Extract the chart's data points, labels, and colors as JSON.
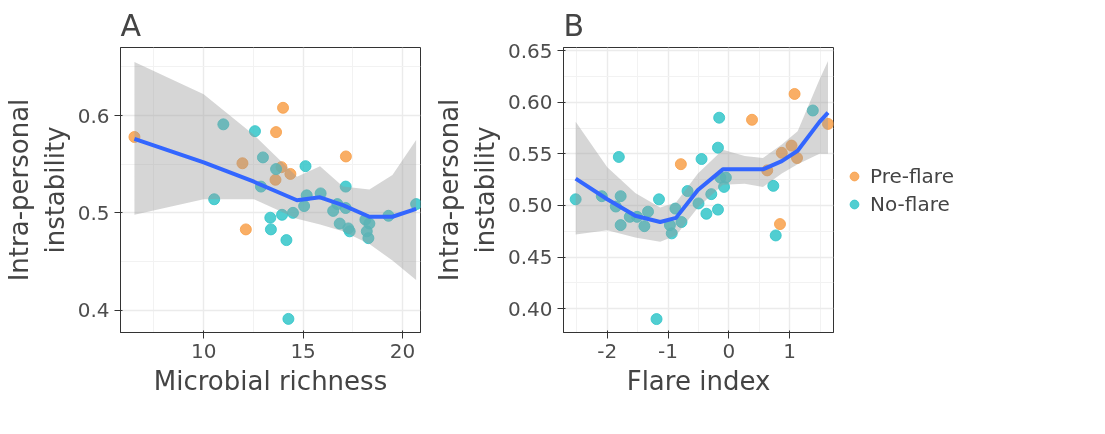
{
  "chart_data": [
    {
      "type": "scatter",
      "title": "A",
      "xlabel": "Microbial richness",
      "ylabel": "Intra-personal\ninstability",
      "xlim": [
        5.82,
        20.9
      ],
      "ylim": [
        0.377,
        0.67
      ],
      "xticks": [
        10,
        15,
        20
      ],
      "yticks": [
        0.4,
        0.5,
        0.6
      ],
      "grid": true,
      "legend": false,
      "series": [
        {
          "marker": "circle",
          "color": "#f8a04a",
          "x": [
            6.52,
            13.99,
            13.64,
            17.15,
            11.95,
            13.91,
            14.36,
            13.61,
            12.12
          ],
          "values": [
            0.578,
            0.608,
            0.583,
            0.558,
            0.551,
            0.547,
            0.54,
            0.534,
            0.483
          ]
        },
        {
          "marker": "circle",
          "color": "#33c6c9",
          "x": [
            10.99,
            12.58,
            12.98,
            13.64,
            15.12,
            12.88,
            10.53,
            15.18,
            15.88,
            15.05,
            14.49,
            13.94,
            13.35,
            13.38,
            14.16,
            14.26,
            16.51,
            16.72,
            17.14,
            17.14,
            16.84,
            17.27,
            17.34,
            18.13,
            18.33,
            18.2,
            18.28,
            19.29,
            20.68
          ],
          "values": [
            0.591,
            0.584,
            0.557,
            0.545,
            0.548,
            0.527,
            0.514,
            0.518,
            0.52,
            0.507,
            0.5,
            0.498,
            0.495,
            0.483,
            0.472,
            0.391,
            0.502,
            0.509,
            0.505,
            0.527,
            0.489,
            0.484,
            0.481,
            0.493,
            0.489,
            0.481,
            0.474,
            0.497,
            0.509
          ]
        },
        {
          "type": "line",
          "color": "#3366ff",
          "line_style": "solid",
          "x": [
            6.52,
            10,
            12.53,
            14.69,
            15.85,
            17.0,
            18.33,
            19.49,
            20.68
          ],
          "values": [
            0.576,
            0.552,
            0.532,
            0.513,
            0.516,
            0.508,
            0.496,
            0.496,
            0.504
          ],
          "lower": [
            0.498,
            0.514,
            0.514,
            0.494,
            0.488,
            0.481,
            0.468,
            0.451,
            0.431
          ],
          "upper": [
            0.655,
            0.622,
            0.58,
            0.537,
            0.548,
            0.527,
            0.524,
            0.539,
            0.575
          ]
        }
      ]
    },
    {
      "type": "scatter",
      "title": "B",
      "xlabel": "Flare index",
      "ylabel": "Intra-personal\ninstability",
      "xlim": [
        -2.72,
        1.72
      ],
      "ylim": [
        0.377,
        0.653
      ],
      "xticks": [
        -2,
        -1,
        0,
        1
      ],
      "yticks": [
        {
          "value": 0.4,
          "label": "0.40"
        },
        {
          "value": 0.45,
          "label": "0.45"
        },
        {
          "value": 0.5,
          "label": "0.50"
        },
        {
          "value": 0.55,
          "label": "0.55"
        },
        {
          "value": 0.6,
          "label": "0.60"
        },
        {
          "value": 0.65,
          "label": "0.65"
        }
      ],
      "grid": true,
      "legend": "right",
      "series": [
        {
          "marker": "circle",
          "name": "Pre-flare",
          "color": "#f8a04a",
          "x": [
            -0.79,
            0.38,
            0.63,
            0.87,
            0.84,
            1.03,
            1.08,
            1.12,
            1.63
          ],
          "values": [
            0.54,
            0.583,
            0.534,
            0.551,
            0.482,
            0.558,
            0.608,
            0.546,
            0.579
          ]
        },
        {
          "marker": "circle",
          "name": "No-flare",
          "color": "#33c6c9",
          "x": [
            -2.52,
            -2.09,
            -1.81,
            -1.78,
            -1.86,
            -1.78,
            -1.63,
            -1.51,
            -1.39,
            -1.33,
            -1.15,
            -1.19,
            -0.97,
            -0.94,
            -0.88,
            -0.78,
            -0.68,
            -0.5,
            -0.45,
            -0.37,
            -0.29,
            -0.18,
            -0.18,
            -0.16,
            -0.14,
            -0.05,
            -0.08,
            0.73,
            0.77,
            1.38
          ],
          "values": [
            0.506,
            0.509,
            0.547,
            0.509,
            0.499,
            0.481,
            0.489,
            0.489,
            0.48,
            0.494,
            0.506,
            0.39,
            0.481,
            0.473,
            0.497,
            0.484,
            0.514,
            0.502,
            0.545,
            0.492,
            0.511,
            0.496,
            0.556,
            0.585,
            0.527,
            0.527,
            0.518,
            0.519,
            0.471,
            0.592
          ]
        },
        {
          "type": "line",
          "color": "#3366ff",
          "line_style": "solid",
          "x": [
            -2.52,
            -2,
            -1.54,
            -1.13,
            -0.87,
            -0.51,
            -0.1,
            0.26,
            0.56,
            0.87,
            1.13,
            1.49,
            1.63
          ],
          "values": [
            0.526,
            0.506,
            0.49,
            0.484,
            0.488,
            0.515,
            0.535,
            0.535,
            0.535,
            0.543,
            0.553,
            0.581,
            0.59
          ],
          "lower": [
            0.472,
            0.476,
            0.469,
            0.465,
            0.471,
            0.498,
            0.52,
            0.521,
            0.518,
            0.531,
            0.54,
            0.55,
            0.55
          ],
          "upper": [
            0.581,
            0.537,
            0.512,
            0.498,
            0.503,
            0.531,
            0.554,
            0.548,
            0.546,
            0.559,
            0.572,
            0.622,
            0.64
          ]
        }
      ]
    }
  ]
}
